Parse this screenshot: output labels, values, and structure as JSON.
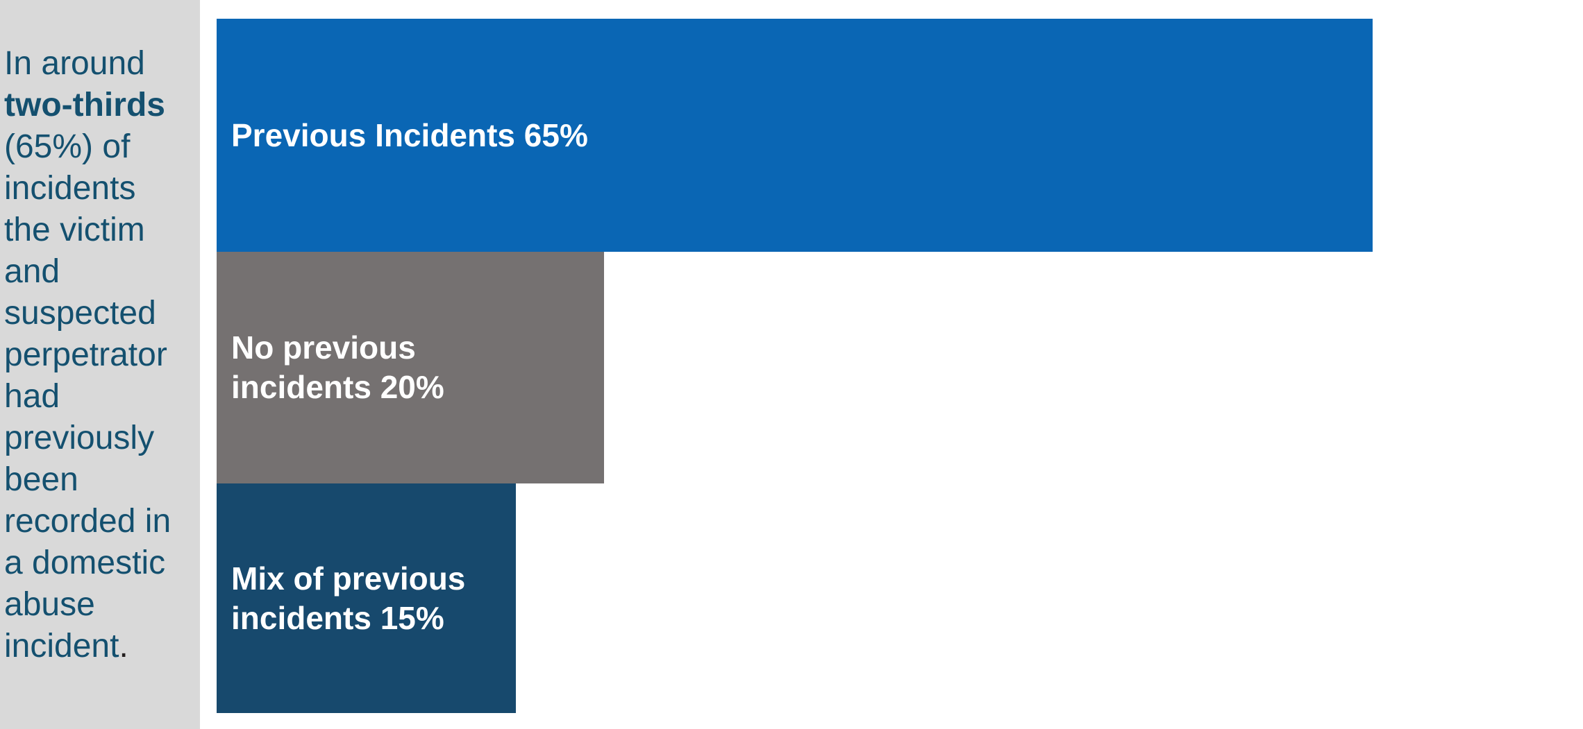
{
  "page": {
    "background": "#FFFFFF"
  },
  "sidebar": {
    "background": "#D9D9D9",
    "text_color": "#14506F",
    "full_text": "In around two-thirds (65%) of incidents the victim and suspected perpetrator had previously been recorded in a domestic abuse incident.",
    "lines": [
      {
        "text": "In around"
      },
      {
        "text": "two-thirds",
        "bold": true
      },
      {
        "text": "(65%) of"
      },
      {
        "text": "incidents"
      },
      {
        "text": "the victim"
      },
      {
        "text": "and"
      },
      {
        "text": "suspected"
      },
      {
        "text": "perpetrator"
      },
      {
        "text": "had"
      },
      {
        "text": "previously"
      },
      {
        "text": "been"
      },
      {
        "text": "recorded in"
      },
      {
        "text": "a domestic"
      },
      {
        "text": "abuse"
      },
      {
        "text": "incident",
        "suffix": ".",
        "suffix_color": "#231F1F"
      }
    ]
  },
  "chart_data": {
    "type": "bar",
    "orientation": "horizontal",
    "title": "",
    "categories": [
      "Previous Incidents",
      "No previous incidents",
      "Mix of previous incidents"
    ],
    "values": [
      65,
      20,
      15
    ],
    "unit": "%",
    "xlim": [
      0,
      65
    ],
    "gridlines": false,
    "axes_visible": false,
    "label_position": "inside-left",
    "label_text_color": "#FFFFFF",
    "bars": [
      {
        "category": "Previous Incidents",
        "value": 65,
        "color": "#0A66B4",
        "label_lines": [
          "Previous Incidents 65%"
        ],
        "track_pct": 100
      },
      {
        "category": "No previous incidents",
        "value": 20,
        "color": "#757171",
        "label_lines": [
          "No previous",
          "incidents 20%"
        ],
        "track_pct": 33.5
      },
      {
        "category": "Mix of previous incidents",
        "value": 15,
        "color": "#17496D",
        "label_lines": [
          "Mix of previous",
          "incidents 15%"
        ],
        "track_pct": 25.9
      }
    ]
  }
}
